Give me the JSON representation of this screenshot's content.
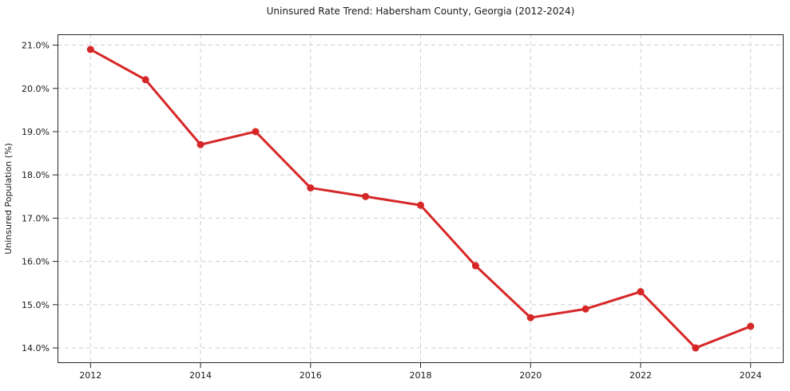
{
  "chart_data": {
    "type": "line",
    "title": "Uninsured Rate Trend: Habersham County, Georgia (2012-2024)",
    "xlabel": "",
    "ylabel": "Uninsured Population (%)",
    "x": [
      2012,
      2013,
      2014,
      2015,
      2016,
      2017,
      2018,
      2019,
      2020,
      2021,
      2022,
      2023,
      2024
    ],
    "series": [
      {
        "name": "Uninsured rate",
        "values": [
          20.9,
          20.2,
          18.7,
          19.0,
          17.7,
          17.5,
          17.3,
          15.9,
          14.7,
          14.9,
          15.3,
          14.0,
          14.5
        ]
      }
    ],
    "units": "%",
    "xlim": [
      2011.4,
      2024.6
    ],
    "ylim": [
      13.65,
      21.25
    ],
    "x_ticks": [
      2012,
      2014,
      2016,
      2018,
      2020,
      2022,
      2024
    ],
    "x_tick_labels": [
      "2012",
      "2014",
      "2016",
      "2018",
      "2020",
      "2022",
      "2024"
    ],
    "y_ticks": [
      14,
      15,
      16,
      17,
      18,
      19,
      20,
      21
    ],
    "y_tick_labels": [
      "14.0%",
      "15.0%",
      "16.0%",
      "17.0%",
      "18.0%",
      "19.0%",
      "20.0%",
      "21.0%"
    ],
    "grid": "dashed",
    "legend": "none",
    "marker": "circle",
    "colors": {
      "line": "#d62728",
      "marker": "#d62728",
      "grid": "#cfcfcf",
      "axis": "#262626",
      "text": "#1a1a1a",
      "background": "#ffffff"
    }
  }
}
